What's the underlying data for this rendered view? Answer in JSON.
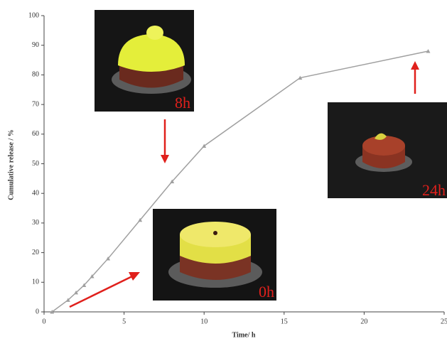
{
  "chart_data": {
    "type": "line",
    "x_label": "Time/ h",
    "y_label": "Cumulative release / %",
    "series": [
      {
        "color": "#a0a0a0",
        "x": [
          0.5,
          1.5,
          2,
          2.5,
          3,
          4,
          6,
          8,
          10,
          16,
          24
        ],
        "values": [
          0,
          4,
          6.5,
          9,
          12,
          18,
          31,
          44,
          56,
          79,
          88
        ]
      }
    ],
    "xlim": [
      0,
      25
    ],
    "xticks": [
      0,
      5,
      10,
      15,
      20,
      25
    ],
    "ylim": [
      0,
      100
    ],
    "yticks": [
      0,
      10,
      20,
      30,
      40,
      50,
      60,
      70,
      80,
      90,
      100
    ],
    "annotations": [
      {
        "text": "8h"
      },
      {
        "text": "24h"
      },
      {
        "text": "0h"
      }
    ]
  }
}
